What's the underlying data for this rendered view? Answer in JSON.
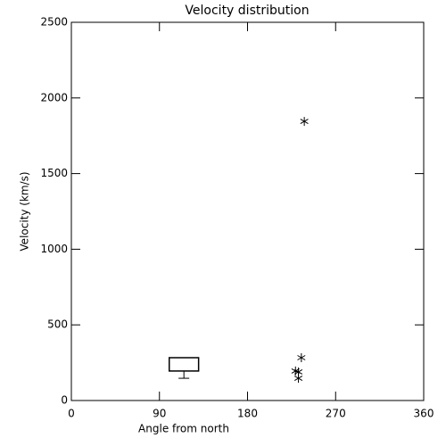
{
  "chart_data": {
    "type": "scatter",
    "title": "Velocity distribution",
    "x_label": "Angle from north",
    "y_label": "Velocity (km/s)",
    "xlim": [
      0,
      360
    ],
    "xticks": [
      0,
      90,
      180,
      270,
      360
    ],
    "ylim": [
      0,
      2500
    ],
    "yticks": [
      0,
      500,
      1000,
      1500,
      2000,
      2500
    ],
    "color": "#000000",
    "marker": "*",
    "x": [
      238,
      235,
      229,
      232,
      232
    ],
    "values": [
      1845,
      283,
      195,
      189,
      147
    ],
    "box": {
      "x_low": 100,
      "x_high": 130,
      "q1": 195,
      "q3": 283,
      "whisker_low": 147
    }
  }
}
